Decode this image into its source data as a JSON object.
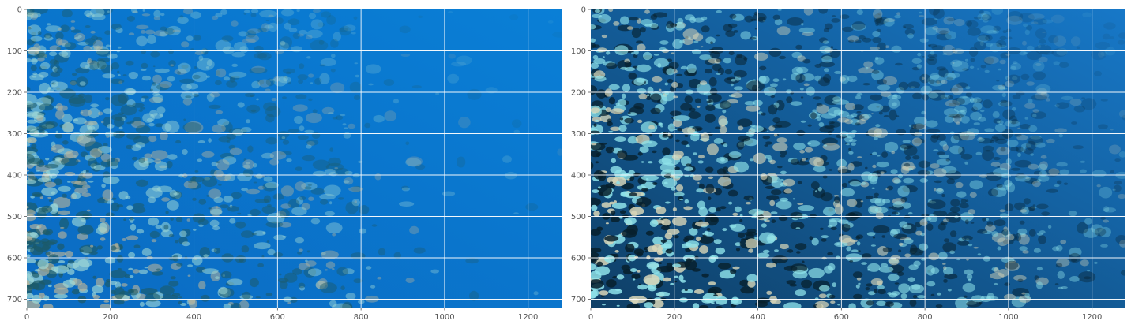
{
  "figure": {
    "panels": [
      {
        "id": "original",
        "image_description_icon": "underwater-coral-reef-photo",
        "xlim": [
          0,
          1280
        ],
        "ylim": [
          720,
          0
        ],
        "xticks": [
          0,
          200,
          400,
          600,
          800,
          1000,
          1200
        ],
        "yticks": [
          0,
          100,
          200,
          300,
          400,
          500,
          600,
          700
        ],
        "colors": {
          "water_top": "#0a7fd6",
          "water_deep": "#0b6bc2",
          "reef_light": "#9fd8d6",
          "reef_dark": "#1d5a66",
          "reef_warm": "#b7b39a"
        }
      },
      {
        "id": "enhanced",
        "image_description_icon": "enhanced-underwater-coral-reef-photo",
        "xlim": [
          0,
          1280
        ],
        "ylim": [
          720,
          0
        ],
        "xticks": [
          0,
          200,
          400,
          600,
          800,
          1000,
          1200
        ],
        "yticks": [
          0,
          100,
          200,
          300,
          400,
          500,
          600,
          700
        ],
        "colors": {
          "water_top": "#1778c8",
          "water_deep": "#0f3f66",
          "reef_light": "#8fe3ea",
          "reef_dark": "#07202c",
          "reef_warm": "#d8d6b8"
        }
      }
    ]
  }
}
